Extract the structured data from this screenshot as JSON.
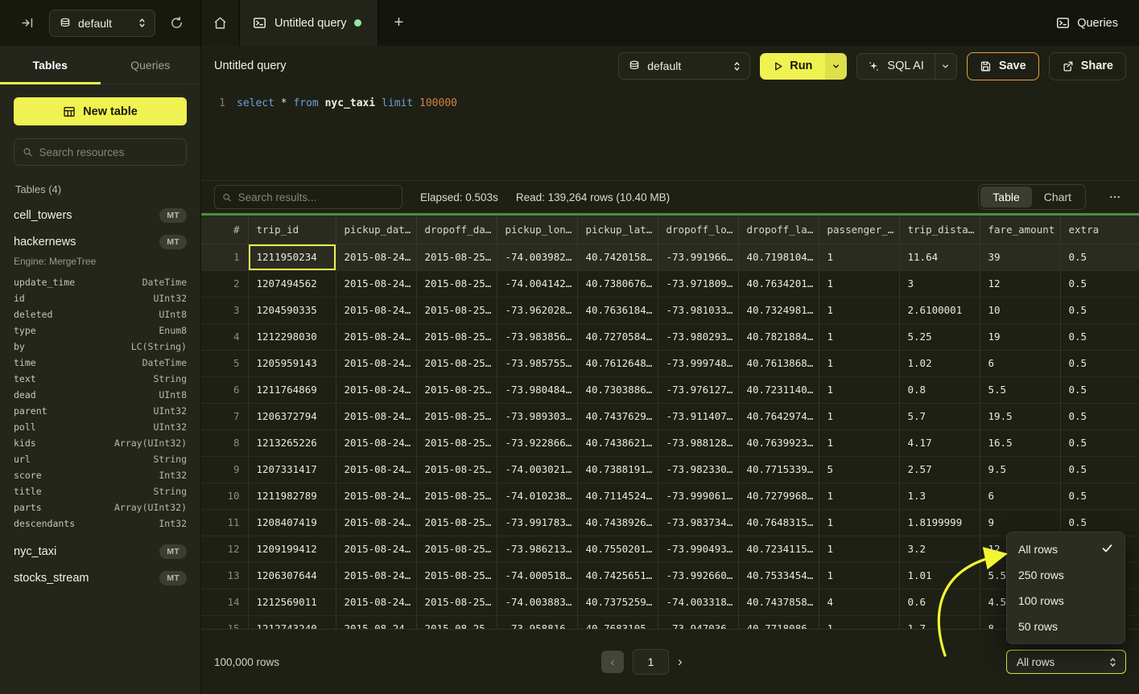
{
  "topbar": {
    "database_selector": "default",
    "tab_title": "Untitled query",
    "new_tab_label": "+",
    "queries_button": "Queries"
  },
  "sidebar": {
    "tabs": [
      {
        "label": "Tables",
        "active": true
      },
      {
        "label": "Queries",
        "active": false
      }
    ],
    "new_table_button": "New table",
    "search_placeholder": "Search resources",
    "section_label": "Tables (4)",
    "tables": [
      {
        "name": "cell_towers",
        "badge": "MT"
      },
      {
        "name": "hackernews",
        "badge": "MT",
        "engine": "Engine: MergeTree",
        "columns": [
          {
            "name": "update_time",
            "type": "DateTime"
          },
          {
            "name": "id",
            "type": "UInt32"
          },
          {
            "name": "deleted",
            "type": "UInt8"
          },
          {
            "name": "type",
            "type": "Enum8"
          },
          {
            "name": "by",
            "type": "LC(String)"
          },
          {
            "name": "time",
            "type": "DateTime"
          },
          {
            "name": "text",
            "type": "String"
          },
          {
            "name": "dead",
            "type": "UInt8"
          },
          {
            "name": "parent",
            "type": "UInt32"
          },
          {
            "name": "poll",
            "type": "UInt32"
          },
          {
            "name": "kids",
            "type": "Array(UInt32)"
          },
          {
            "name": "url",
            "type": "String"
          },
          {
            "name": "score",
            "type": "Int32"
          },
          {
            "name": "title",
            "type": "String"
          },
          {
            "name": "parts",
            "type": "Array(UInt32)"
          },
          {
            "name": "descendants",
            "type": "Int32"
          }
        ]
      },
      {
        "name": "nyc_taxi",
        "badge": "MT"
      },
      {
        "name": "stocks_stream",
        "badge": "MT"
      }
    ]
  },
  "query_header": {
    "title": "Untitled query",
    "database_selector": "default",
    "run_button": "Run",
    "sql_ai_button": "SQL AI",
    "save_button": "Save",
    "share_button": "Share"
  },
  "editor": {
    "line_number": "1",
    "tokens": [
      {
        "text": "select",
        "type": "keyword"
      },
      {
        "text": " * ",
        "type": "plain"
      },
      {
        "text": "from",
        "type": "keyword"
      },
      {
        "text": " ",
        "type": "plain"
      },
      {
        "text": "nyc_taxi",
        "type": "identifier"
      },
      {
        "text": " ",
        "type": "plain"
      },
      {
        "text": "limit",
        "type": "keyword"
      },
      {
        "text": " ",
        "type": "plain"
      },
      {
        "text": "100000",
        "type": "number"
      }
    ]
  },
  "results": {
    "search_placeholder": "Search results...",
    "elapsed": "Elapsed: 0.503s",
    "read": "Read: 139,264 rows (10.40 MB)",
    "view_toggle": [
      {
        "label": "Table",
        "active": true
      },
      {
        "label": "Chart",
        "active": false
      }
    ]
  },
  "table": {
    "headers": [
      "#",
      "trip_id",
      "pickup_dat…",
      "dropoff_da…",
      "pickup_lon…",
      "pickup_lat…",
      "dropoff_lo…",
      "dropoff_la…",
      "passenger_…",
      "trip_dista…",
      "fare_amount",
      "extra"
    ],
    "rows": [
      [
        "1",
        "1211950234",
        "2015-08-24…",
        "2015-08-25…",
        "-74.003982…",
        "40.7420158…",
        "-73.991966…",
        "40.7198104…",
        "1",
        "11.64",
        "39",
        "0.5"
      ],
      [
        "2",
        "1207494562",
        "2015-08-24…",
        "2015-08-25…",
        "-74.004142…",
        "40.7380676…",
        "-73.971809…",
        "40.7634201…",
        "1",
        "3",
        "12",
        "0.5"
      ],
      [
        "3",
        "1204590335",
        "2015-08-24…",
        "2015-08-25…",
        "-73.962028…",
        "40.7636184…",
        "-73.981033…",
        "40.7324981…",
        "1",
        "2.6100001",
        "10",
        "0.5"
      ],
      [
        "4",
        "1212298030",
        "2015-08-24…",
        "2015-08-25…",
        "-73.983856…",
        "40.7270584…",
        "-73.980293…",
        "40.7821884…",
        "1",
        "5.25",
        "19",
        "0.5"
      ],
      [
        "5",
        "1205959143",
        "2015-08-24…",
        "2015-08-25…",
        "-73.985755…",
        "40.7612648…",
        "-73.999748…",
        "40.7613868…",
        "1",
        "1.02",
        "6",
        "0.5"
      ],
      [
        "6",
        "1211764869",
        "2015-08-24…",
        "2015-08-25…",
        "-73.980484…",
        "40.7303886…",
        "-73.976127…",
        "40.7231140…",
        "1",
        "0.8",
        "5.5",
        "0.5"
      ],
      [
        "7",
        "1206372794",
        "2015-08-24…",
        "2015-08-25…",
        "-73.989303…",
        "40.7437629…",
        "-73.911407…",
        "40.7642974…",
        "1",
        "5.7",
        "19.5",
        "0.5"
      ],
      [
        "8",
        "1213265226",
        "2015-08-24…",
        "2015-08-25…",
        "-73.922866…",
        "40.7438621…",
        "-73.988128…",
        "40.7639923…",
        "1",
        "4.17",
        "16.5",
        "0.5"
      ],
      [
        "9",
        "1207331417",
        "2015-08-24…",
        "2015-08-25…",
        "-74.003021…",
        "40.7388191…",
        "-73.982330…",
        "40.7715339…",
        "5",
        "2.57",
        "9.5",
        "0.5"
      ],
      [
        "10",
        "1211982789",
        "2015-08-24…",
        "2015-08-25…",
        "-74.010238…",
        "40.7114524…",
        "-73.999061…",
        "40.7279968…",
        "1",
        "1.3",
        "6",
        "0.5"
      ],
      [
        "11",
        "1208407419",
        "2015-08-24…",
        "2015-08-25…",
        "-73.991783…",
        "40.7438926…",
        "-73.983734…",
        "40.7648315…",
        "1",
        "1.8199999",
        "9",
        "0.5"
      ],
      [
        "12",
        "1209199412",
        "2015-08-24…",
        "2015-08-25…",
        "-73.986213…",
        "40.7550201…",
        "-73.990493…",
        "40.7234115…",
        "1",
        "3.2",
        "12",
        "0.5"
      ],
      [
        "13",
        "1206307644",
        "2015-08-24…",
        "2015-08-25…",
        "-74.000518…",
        "40.7425651…",
        "-73.992660…",
        "40.7533454…",
        "1",
        "1.01",
        "5.5",
        "0.5"
      ],
      [
        "14",
        "1212569011",
        "2015-08-24…",
        "2015-08-25…",
        "-74.003883…",
        "40.7375259…",
        "-74.003318…",
        "40.7437858…",
        "4",
        "0.6",
        "4.5",
        "0.5"
      ],
      [
        "15",
        "1212743240",
        "2015-08-24…",
        "2015-08-25…",
        "-73.958816…",
        "40.7683105…",
        "-73.947036…",
        "40.7718086…",
        "1",
        "1.7",
        "8",
        "0.5"
      ]
    ]
  },
  "footer": {
    "row_count": "100,000 rows",
    "page": "1"
  },
  "rows_menu": {
    "items": [
      {
        "label": "All rows",
        "checked": true
      },
      {
        "label": "250 rows",
        "checked": false
      },
      {
        "label": "100 rows",
        "checked": false
      },
      {
        "label": "50 rows",
        "checked": false
      }
    ],
    "select_value": "All rows"
  },
  "colors": {
    "accent_yellow": "#eff250",
    "save_border_orange": "#e9a13b",
    "progress_green": "#4b8f3d",
    "tab_dot_green": "#95e8a0"
  }
}
